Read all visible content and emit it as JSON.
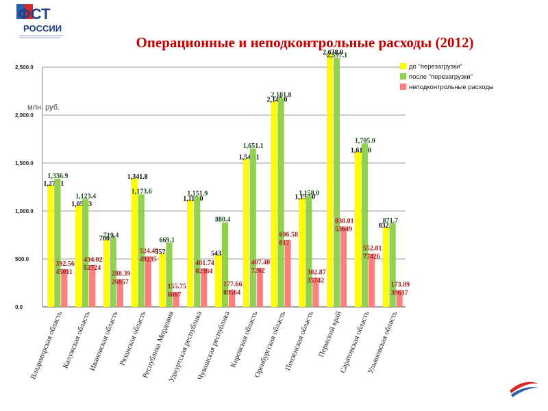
{
  "header": {
    "logo_text_line1": "ФСТ",
    "logo_text_line2": "РОССИИ",
    "title": "Операционные и неподконтрольные расходы (2012)"
  },
  "chart_data": {
    "type": "bar",
    "unit_label": "млн. руб.",
    "ylim": [
      0,
      2500
    ],
    "yticks": [
      0,
      500,
      1000,
      1500,
      2000,
      2500
    ],
    "ytick_labels": [
      "0.0",
      "500.0",
      "1,000.0",
      "1,500.0",
      "2,000.0",
      "2,500.0"
    ],
    "grid": true,
    "legend_position": "top-right",
    "categories": [
      "Владимирская область",
      "Калужская область",
      "Ивановская область",
      "Рязанская область",
      "Республика Мордовия",
      "Удмуртская республика",
      "Чувашская республика",
      "Кировская область",
      "Оренбургская область",
      "Пензенская область",
      "Пермский край",
      "Саратовская область",
      "Ульяновская область"
    ],
    "series": [
      {
        "name": "до \"перезагрузки\"",
        "color": "#ffff00",
        "values": [
          1272.1,
          1058.3,
          700.9,
          1341.8,
          557.0,
          1116.0,
          543.0,
          1545.1,
          2145.0,
          1132.0,
          2638.0,
          1617.0,
          832.8
        ],
        "labels": [
          "1,272.1",
          "1,058.3",
          "700.9",
          "1,341.8",
          "557.0",
          "1,116.0",
          "543.0",
          "1,545.1",
          "2,145.0",
          "1,132.0",
          "2,638.0",
          "1,617.0",
          "832.8"
        ]
      },
      {
        "name": "после \"перезагрузки\"",
        "color": "#92d050",
        "values": [
          1336.9,
          1123.4,
          719.4,
          1173.6,
          669.1,
          1151.9,
          880.4,
          1651.1,
          2181.8,
          1158.0,
          2597.1,
          1705.0,
          871.7
        ],
        "labels": [
          "1,336.9",
          "1,123.4",
          "719.4",
          "1,173.6",
          "669.1",
          "1,151.9",
          "880.4",
          "1,651.1",
          "2,181.8",
          "1,158.0",
          "2,597.1",
          "1,705.0",
          "871.7"
        ]
      },
      {
        "name": "неподконтрольные расходы",
        "color": "#ff7f7f",
        "values": [
          392.56,
          434.02,
          288.39,
          524.49,
          155.75,
          401.74,
          177.66,
          407.4,
          696.58,
          302.87,
          838.01,
          552.01,
          173.89
        ],
        "labels": [
          "392.56",
          "434.02",
          "288.39",
          "524.49",
          "155.75",
          "401.74",
          "177.66",
          "407.40",
          "696.58",
          "302.87",
          "838.01",
          "552.01",
          "173.89"
        ],
        "sublabels": [
          "45011",
          "52724",
          "26857",
          "49235",
          "8867",
          "02384",
          "89564",
          "7262",
          "817",
          "35742",
          "53649",
          "77426",
          "39637"
        ]
      }
    ]
  }
}
